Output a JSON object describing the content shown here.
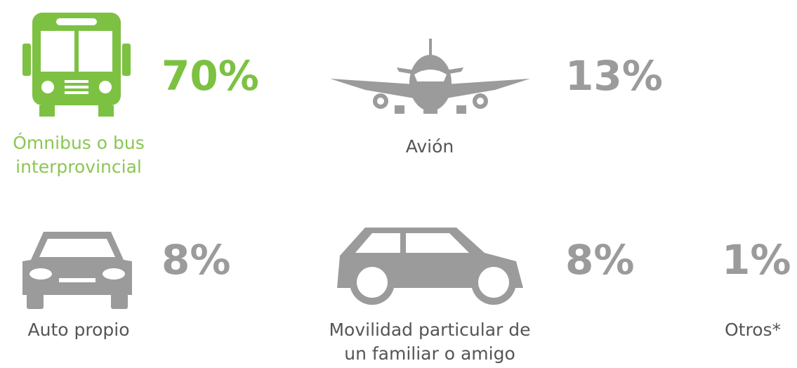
{
  "items": [
    {
      "value": "70%",
      "label": [
        "Ómnibus o bus",
        "interprovincial"
      ]
    },
    {
      "value": "13%",
      "label": [
        "Avión"
      ]
    },
    {
      "value": "8%",
      "label": [
        "Auto propio"
      ]
    },
    {
      "value": "8%",
      "label": [
        "Movilidad particular de",
        "un familiar o amigo"
      ]
    },
    {
      "value": "1%",
      "label": [
        "Otros*"
      ]
    }
  ]
}
